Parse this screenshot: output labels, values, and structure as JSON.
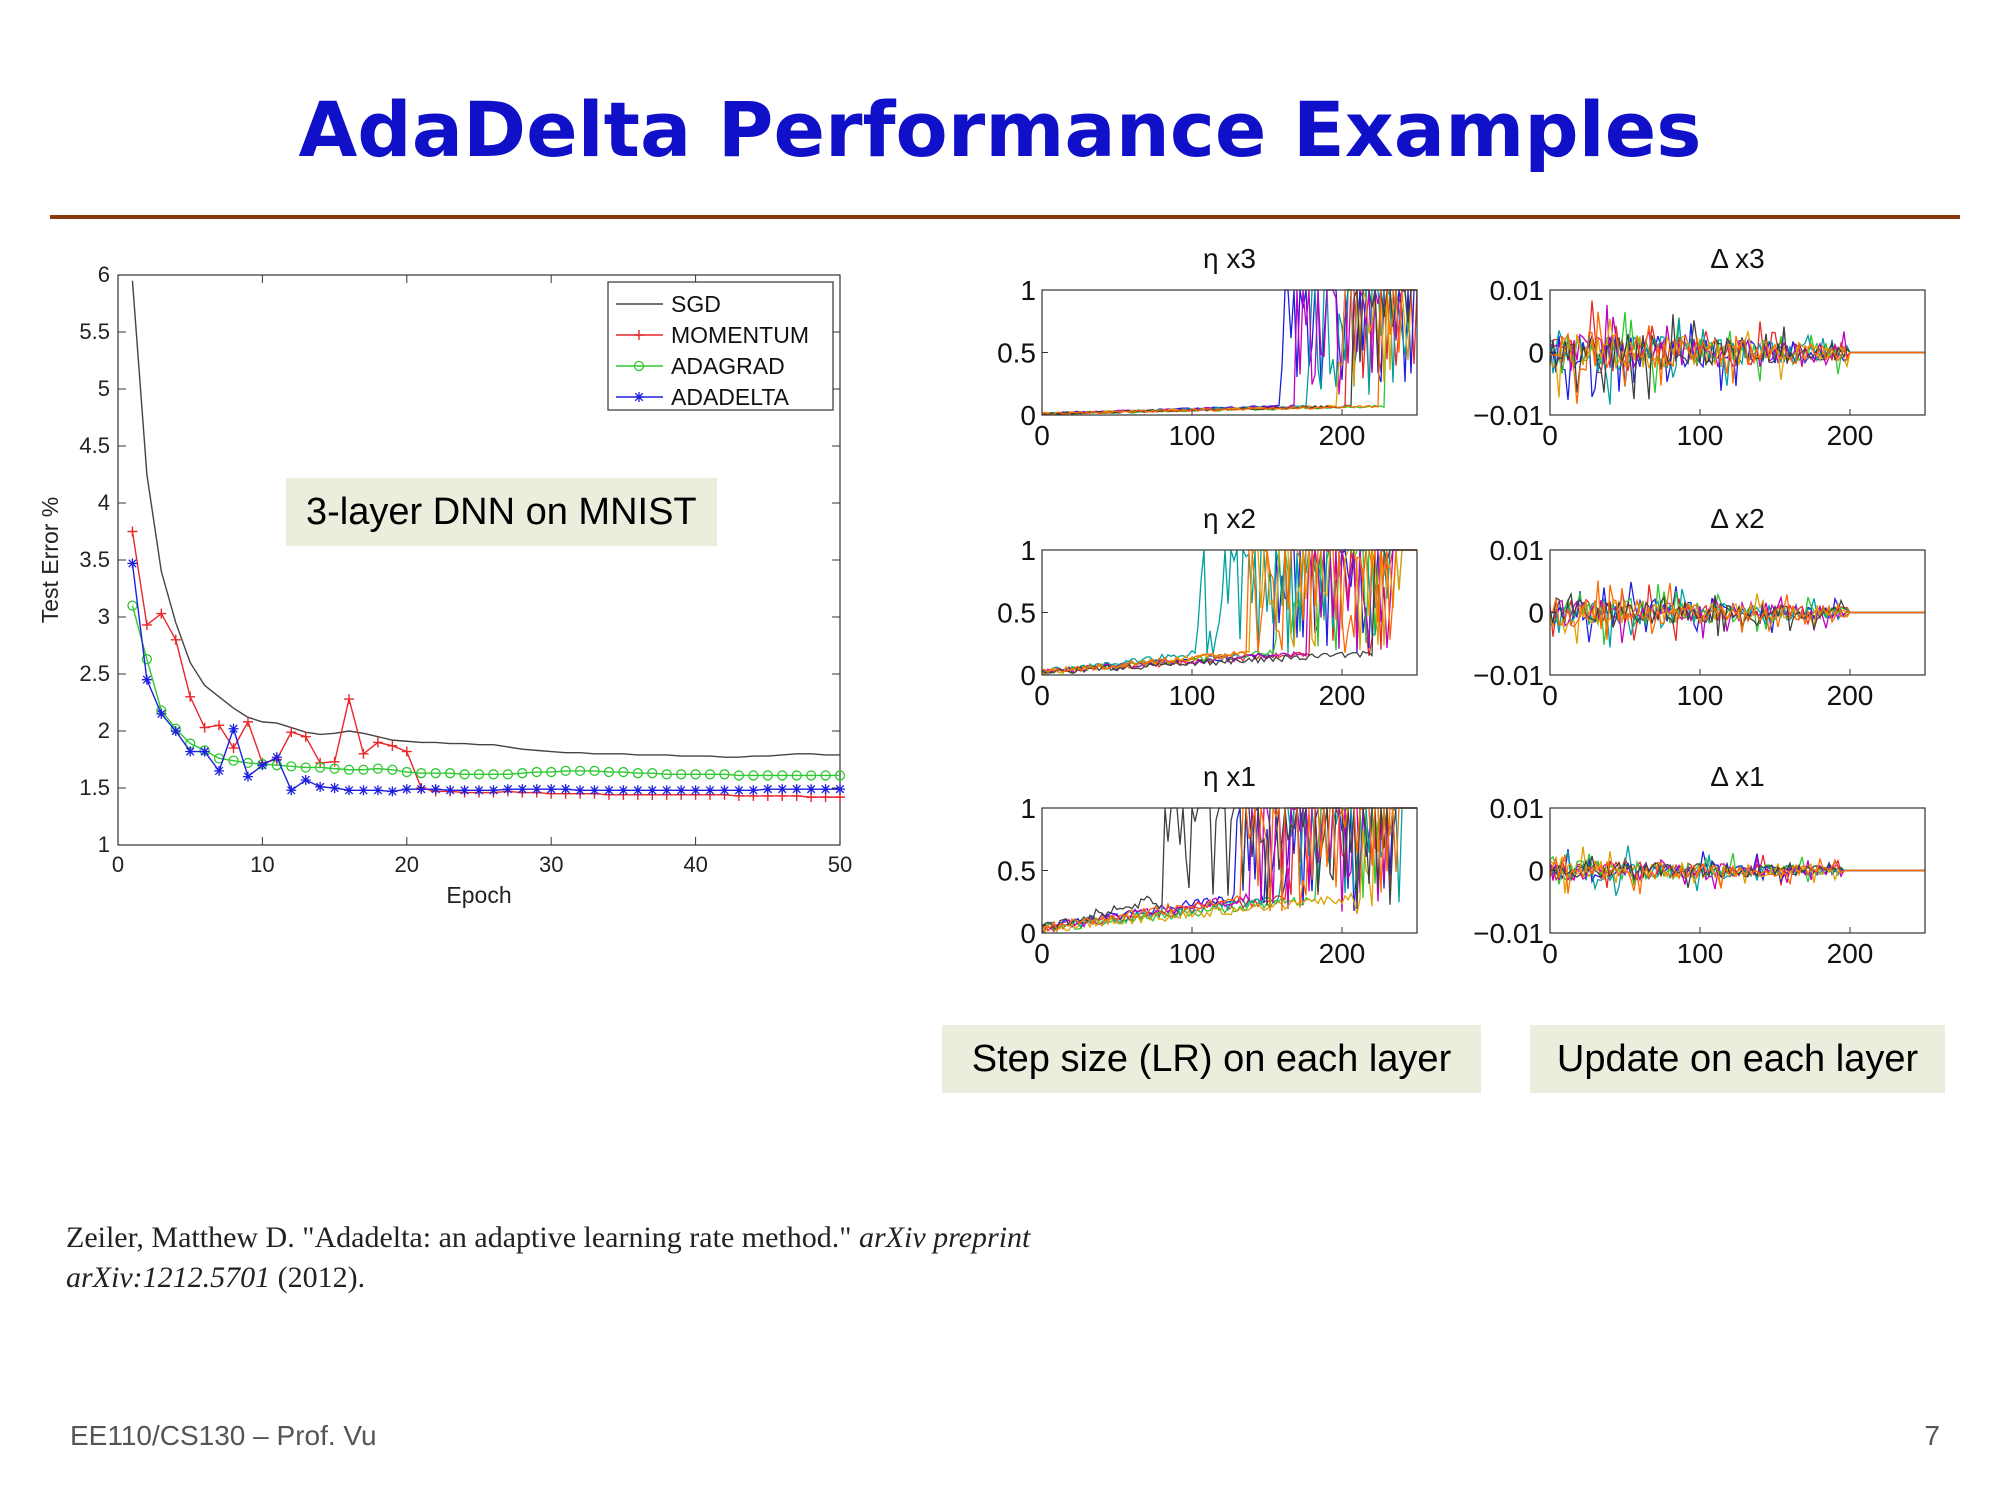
{
  "slide": {
    "title": "AdaDelta Performance Examples",
    "footer_left": "EE110/CS130 – Prof. Vu",
    "page_number": "7",
    "colors": {
      "title": "#1010c8",
      "rule": "#8b3a0e",
      "label_bg": "#e9efdc"
    }
  },
  "labels": {
    "dnn": "3-layer DNN on MNIST",
    "step": "Step size (LR) on each layer",
    "update": "Update on each layer"
  },
  "citation": {
    "authors": "Zeiler, Matthew D. \"Adadelta: an adaptive learning rate method.\"",
    "journal": "arXiv preprint arXiv:1212.5701",
    "year": "(2012)."
  },
  "chart_data": [
    {
      "id": "main",
      "type": "line",
      "xlabel": "Epoch",
      "ylabel": "Test Error %",
      "xlim": [
        0,
        50
      ],
      "ylim": [
        1,
        6
      ],
      "xticks": [
        0,
        10,
        20,
        30,
        40,
        50
      ],
      "yticks": [
        1,
        1.5,
        2,
        2.5,
        3,
        3.5,
        4,
        4.5,
        5,
        5.5,
        6
      ],
      "legend_position": "top-right",
      "series": [
        {
          "name": "SGD",
          "color": "#444444",
          "marker": "none",
          "x": [
            1,
            2,
            3,
            4,
            5,
            6,
            7,
            8,
            9,
            10,
            11,
            12,
            13,
            14,
            15,
            16,
            17,
            18,
            19,
            20,
            21,
            22,
            23,
            24,
            25,
            26,
            27,
            28,
            29,
            30,
            31,
            32,
            33,
            34,
            35,
            36,
            37,
            38,
            39,
            40,
            41,
            42,
            43,
            44,
            45,
            46,
            47,
            48,
            49,
            50
          ],
          "y": [
            5.95,
            4.25,
            3.4,
            2.95,
            2.6,
            2.4,
            2.3,
            2.2,
            2.12,
            2.08,
            2.07,
            2.03,
            1.99,
            1.97,
            1.98,
            2.0,
            1.98,
            1.95,
            1.92,
            1.91,
            1.9,
            1.9,
            1.89,
            1.89,
            1.88,
            1.88,
            1.86,
            1.84,
            1.83,
            1.82,
            1.81,
            1.81,
            1.8,
            1.8,
            1.8,
            1.79,
            1.79,
            1.79,
            1.78,
            1.78,
            1.78,
            1.77,
            1.77,
            1.78,
            1.78,
            1.79,
            1.8,
            1.8,
            1.79,
            1.79
          ]
        },
        {
          "name": "MOMENTUM",
          "color": "#e8282a",
          "marker": "plus",
          "x": [
            1,
            2,
            3,
            4,
            5,
            6,
            7,
            8,
            9,
            10,
            11,
            12,
            13,
            14,
            15,
            16,
            17,
            18,
            19,
            20,
            21,
            22,
            23,
            24,
            25,
            26,
            27,
            28,
            29,
            30,
            31,
            32,
            33,
            34,
            35,
            36,
            37,
            38,
            39,
            40,
            41,
            42,
            43,
            44,
            45,
            46,
            47,
            48,
            49,
            50
          ],
          "y": [
            3.75,
            2.93,
            3.03,
            2.8,
            2.3,
            2.03,
            2.05,
            1.85,
            2.08,
            1.72,
            1.75,
            1.99,
            1.95,
            1.72,
            1.73,
            2.28,
            1.8,
            1.9,
            1.87,
            1.82,
            1.5,
            1.47,
            1.47,
            1.46,
            1.46,
            1.46,
            1.47,
            1.46,
            1.46,
            1.45,
            1.45,
            1.45,
            1.45,
            1.44,
            1.44,
            1.44,
            1.44,
            1.44,
            1.44,
            1.44,
            1.44,
            1.44,
            1.43,
            1.43,
            1.43,
            1.43,
            1.43,
            1.42,
            1.42,
            1.42
          ]
        },
        {
          "name": "ADAGRAD",
          "color": "#2ec830",
          "marker": "circle",
          "x": [
            1,
            2,
            3,
            4,
            5,
            6,
            7,
            8,
            9,
            10,
            11,
            12,
            13,
            14,
            15,
            16,
            17,
            18,
            19,
            20,
            21,
            22,
            23,
            24,
            25,
            26,
            27,
            28,
            29,
            30,
            31,
            32,
            33,
            34,
            35,
            36,
            37,
            38,
            39,
            40,
            41,
            42,
            43,
            44,
            45,
            46,
            47,
            48,
            49,
            50
          ],
          "y": [
            3.1,
            2.63,
            2.18,
            2.02,
            1.89,
            1.83,
            1.76,
            1.74,
            1.72,
            1.71,
            1.7,
            1.69,
            1.68,
            1.68,
            1.67,
            1.66,
            1.66,
            1.67,
            1.66,
            1.64,
            1.63,
            1.63,
            1.63,
            1.62,
            1.62,
            1.62,
            1.62,
            1.63,
            1.64,
            1.64,
            1.65,
            1.65,
            1.65,
            1.64,
            1.64,
            1.63,
            1.63,
            1.62,
            1.62,
            1.62,
            1.62,
            1.62,
            1.61,
            1.61,
            1.61,
            1.61,
            1.61,
            1.61,
            1.61,
            1.61
          ]
        },
        {
          "name": "ADADELTA",
          "color": "#1f1fe0",
          "marker": "star",
          "x": [
            1,
            2,
            3,
            4,
            5,
            6,
            7,
            8,
            9,
            10,
            11,
            12,
            13,
            14,
            15,
            16,
            17,
            18,
            19,
            20,
            21,
            22,
            23,
            24,
            25,
            26,
            27,
            28,
            29,
            30,
            31,
            32,
            33,
            34,
            35,
            36,
            37,
            38,
            39,
            40,
            41,
            42,
            43,
            44,
            45,
            46,
            47,
            48,
            49,
            50
          ],
          "y": [
            3.47,
            2.45,
            2.15,
            2.0,
            1.82,
            1.82,
            1.65,
            2.02,
            1.6,
            1.7,
            1.77,
            1.48,
            1.57,
            1.51,
            1.5,
            1.48,
            1.48,
            1.48,
            1.47,
            1.49,
            1.49,
            1.49,
            1.48,
            1.48,
            1.48,
            1.48,
            1.49,
            1.49,
            1.49,
            1.49,
            1.49,
            1.48,
            1.48,
            1.48,
            1.48,
            1.48,
            1.48,
            1.48,
            1.48,
            1.48,
            1.48,
            1.48,
            1.48,
            1.48,
            1.49,
            1.49,
            1.49,
            1.49,
            1.49,
            1.49
          ]
        }
      ]
    },
    {
      "id": "eta3",
      "type": "line",
      "title": "η x3",
      "xlim": [
        0,
        250
      ],
      "ylim": [
        0,
        1
      ],
      "xticks": [
        0,
        100,
        200
      ],
      "yticks": [
        0,
        0.5,
        1
      ],
      "ytick_labels": [
        "0",
        "0.5",
        "1"
      ],
      "onset_range": [
        150,
        235
      ],
      "noise": 0.02,
      "colors": [
        "#e8282a",
        "#1f1fe0",
        "#2ec830",
        "#00a0a0",
        "#c000c0",
        "#e0a000",
        "#404040",
        "#ff6a00"
      ]
    },
    {
      "id": "eta2",
      "type": "line",
      "title": "η x2",
      "xlim": [
        0,
        250
      ],
      "ylim": [
        0,
        1
      ],
      "xticks": [
        0,
        100,
        200
      ],
      "yticks": [
        0,
        0.5,
        1
      ],
      "ytick_labels": [
        "0",
        "0.5",
        "1"
      ],
      "onset_range": [
        90,
        225
      ],
      "noise": 0.05,
      "colors": [
        "#e8282a",
        "#1f1fe0",
        "#2ec830",
        "#00a0a0",
        "#c000c0",
        "#e0a000",
        "#404040",
        "#ff6a00"
      ]
    },
    {
      "id": "eta1",
      "type": "line",
      "title": "η x1",
      "xlim": [
        0,
        250
      ],
      "ylim": [
        0,
        1
      ],
      "xticks": [
        0,
        100,
        200
      ],
      "yticks": [
        0,
        0.5,
        1
      ],
      "ytick_labels": [
        "0",
        "0.5",
        "1"
      ],
      "onset_range": [
        20,
        225
      ],
      "noise": 0.08,
      "colors": [
        "#e8282a",
        "#1f1fe0",
        "#2ec830",
        "#00a0a0",
        "#c000c0",
        "#e0a000",
        "#404040",
        "#ff6a00"
      ]
    },
    {
      "id": "delta3",
      "type": "line",
      "title": "Δ x3",
      "xlim": [
        0,
        250
      ],
      "ylim": [
        -0.01,
        0.01
      ],
      "xticks": [
        0,
        100,
        200
      ],
      "yticks": [
        -0.01,
        0,
        0.01
      ],
      "ytick_labels": [
        "−0.01",
        "0",
        "0.01"
      ],
      "active_until": 200,
      "amplitude": 0.006,
      "colors": [
        "#e8282a",
        "#1f1fe0",
        "#2ec830",
        "#00a0a0",
        "#c000c0",
        "#e0a000",
        "#404040",
        "#ff6a00"
      ]
    },
    {
      "id": "delta2",
      "type": "line",
      "title": "Δ x2",
      "xlim": [
        0,
        250
      ],
      "ylim": [
        -0.01,
        0.01
      ],
      "xticks": [
        0,
        100,
        200
      ],
      "yticks": [
        -0.01,
        0,
        0.01
      ],
      "ytick_labels": [
        "−0.01",
        "0",
        "0.01"
      ],
      "active_until": 200,
      "amplitude": 0.004,
      "colors": [
        "#e8282a",
        "#1f1fe0",
        "#2ec830",
        "#00a0a0",
        "#c000c0",
        "#e0a000",
        "#404040",
        "#ff6a00"
      ]
    },
    {
      "id": "delta1",
      "type": "line",
      "title": "Δ x1",
      "xlim": [
        0,
        250
      ],
      "ylim": [
        -0.01,
        0.01
      ],
      "xticks": [
        0,
        100,
        200
      ],
      "yticks": [
        -0.01,
        0,
        0.01
      ],
      "ytick_labels": [
        "−0.01",
        "0",
        "0.01"
      ],
      "active_until": 195,
      "amplitude": 0.003,
      "colors": [
        "#e8282a",
        "#1f1fe0",
        "#2ec830",
        "#00a0a0",
        "#c000c0",
        "#e0a000",
        "#404040",
        "#ff6a00"
      ]
    }
  ]
}
